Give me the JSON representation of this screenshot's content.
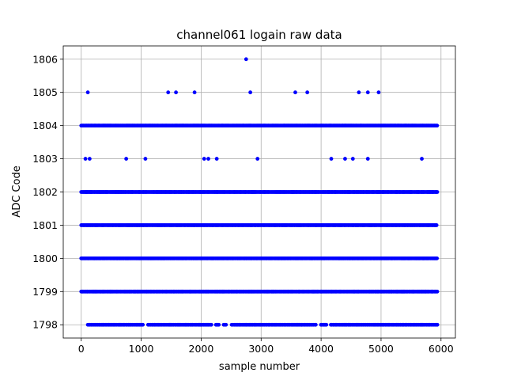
{
  "chart_data": {
    "type": "scatter",
    "title": "channel061 logain raw data",
    "xlabel": "sample number",
    "ylabel": "ADC Code",
    "xlim": [
      -300,
      6240
    ],
    "ylim": [
      1797.6,
      1806.4
    ],
    "x_ticks": [
      0,
      1000,
      2000,
      3000,
      4000,
      5000,
      6000
    ],
    "y_ticks": [
      1798,
      1799,
      1800,
      1801,
      1802,
      1803,
      1804,
      1805,
      1806
    ],
    "grid": true,
    "marker_color": "#0000ff",
    "sample_count": 5940,
    "dense_levels": [
      1799,
      1800,
      1801,
      1802,
      1804
    ],
    "partial_level": {
      "y": 1798,
      "x_start": 110,
      "x_end": 5940,
      "gaps": [
        [
          1040,
          1100
        ],
        [
          2180,
          2240
        ],
        [
          2300,
          2360
        ],
        [
          2430,
          2490
        ],
        [
          3930,
          3990
        ],
        [
          4100,
          4160
        ]
      ]
    },
    "sparse_points": [
      {
        "x": 110,
        "y": 1805
      },
      {
        "x": 1450,
        "y": 1805
      },
      {
        "x": 1580,
        "y": 1805
      },
      {
        "x": 1890,
        "y": 1805
      },
      {
        "x": 2750,
        "y": 1806
      },
      {
        "x": 2820,
        "y": 1805
      },
      {
        "x": 3570,
        "y": 1805
      },
      {
        "x": 3770,
        "y": 1805
      },
      {
        "x": 4630,
        "y": 1805
      },
      {
        "x": 4780,
        "y": 1805
      },
      {
        "x": 4960,
        "y": 1805
      },
      {
        "x": 70,
        "y": 1803
      },
      {
        "x": 140,
        "y": 1803
      },
      {
        "x": 750,
        "y": 1803
      },
      {
        "x": 1070,
        "y": 1803
      },
      {
        "x": 2050,
        "y": 1803
      },
      {
        "x": 2120,
        "y": 1803
      },
      {
        "x": 2260,
        "y": 1803
      },
      {
        "x": 2940,
        "y": 1803
      },
      {
        "x": 4170,
        "y": 1803
      },
      {
        "x": 4400,
        "y": 1803
      },
      {
        "x": 4530,
        "y": 1803
      },
      {
        "x": 4780,
        "y": 1803
      },
      {
        "x": 5680,
        "y": 1803
      }
    ]
  }
}
